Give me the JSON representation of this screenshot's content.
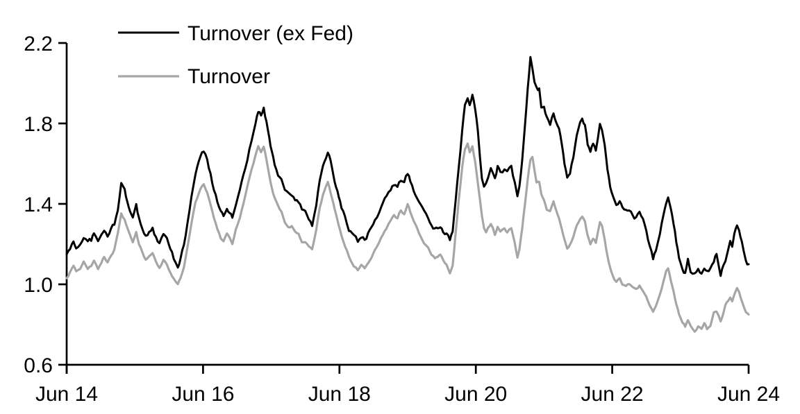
{
  "figure": {
    "background": "#ffffff",
    "axis_color": "#000000"
  },
  "legend": {
    "items": [
      {
        "label": "Turnover (ex Fed)",
        "color": "#000000"
      },
      {
        "label": "Turnover",
        "color": "#a6a6a6"
      }
    ]
  },
  "chart_data": {
    "type": "line",
    "title": "",
    "xlabel": "",
    "ylabel": "",
    "grid": false,
    "legend_position": "top-left-inside",
    "x_axis": {
      "tick_labels": [
        "Jun 14",
        "Jun 16",
        "Jun 18",
        "Jun 20",
        "Jun 22",
        "Jun 24"
      ],
      "tick_years": [
        0,
        2,
        4,
        6,
        8,
        10
      ],
      "unit": "years since Jun 2014",
      "range": [
        0,
        10.0
      ]
    },
    "y_axis": {
      "tick_labels": [
        "0.6",
        "1.0",
        "1.4",
        "1.8",
        "2.2"
      ],
      "tick_values": [
        0.6,
        1.0,
        1.4,
        1.8,
        2.2
      ],
      "range": [
        0.6,
        2.2
      ]
    },
    "t": [
      0.0,
      0.05,
      0.1,
      0.14,
      0.2,
      0.25,
      0.31,
      0.36,
      0.4,
      0.46,
      0.51,
      0.55,
      0.6,
      0.65,
      0.7,
      0.75,
      0.8,
      0.85,
      0.89,
      0.93,
      0.97,
      1.02,
      1.06,
      1.11,
      1.16,
      1.21,
      1.26,
      1.31,
      1.36,
      1.42,
      1.47,
      1.52,
      1.57,
      1.63,
      1.67,
      1.72,
      1.77,
      1.83,
      1.89,
      1.96,
      2.01,
      2.06,
      2.11,
      2.16,
      2.21,
      2.26,
      2.3,
      2.35,
      2.39,
      2.43,
      2.48,
      2.54,
      2.59,
      2.65,
      2.71,
      2.77,
      2.81,
      2.85,
      2.89,
      2.93,
      2.97,
      3.01,
      3.05,
      3.1,
      3.15,
      3.2,
      3.25,
      3.3,
      3.35,
      3.4,
      3.45,
      3.5,
      3.55,
      3.6,
      3.66,
      3.71,
      3.76,
      3.8,
      3.83,
      3.87,
      3.91,
      3.95,
      3.99,
      4.03,
      4.08,
      4.14,
      4.21,
      4.27,
      4.32,
      4.37,
      4.42,
      4.47,
      4.52,
      4.58,
      4.64,
      4.69,
      4.75,
      4.8,
      4.85,
      4.9,
      4.95,
      5.0,
      5.04,
      5.09,
      5.14,
      5.19,
      5.24,
      5.3,
      5.35,
      5.4,
      5.44,
      5.48,
      5.52,
      5.57,
      5.62,
      5.66,
      5.7,
      5.75,
      5.8,
      5.84,
      5.88,
      5.91,
      5.95,
      5.99,
      6.03,
      6.06,
      6.09,
      6.12,
      6.15,
      6.18,
      6.22,
      6.25,
      6.28,
      6.32,
      6.36,
      6.42,
      6.46,
      6.52,
      6.57,
      6.61,
      6.64,
      6.68,
      6.72,
      6.76,
      6.8,
      6.83,
      6.86,
      6.89,
      6.93,
      6.96,
      7.0,
      7.04,
      7.09,
      7.14,
      7.18,
      7.22,
      7.26,
      7.3,
      7.34,
      7.38,
      7.43,
      7.48,
      7.53,
      7.56,
      7.6,
      7.64,
      7.68,
      7.72,
      7.76,
      7.79,
      7.82,
      7.85,
      7.89,
      7.93,
      7.97,
      8.01,
      8.06,
      8.11,
      8.15,
      8.2,
      8.25,
      8.3,
      8.35,
      8.4,
      8.45,
      8.5,
      8.55,
      8.6,
      8.64,
      8.7,
      8.75,
      8.79,
      8.82,
      8.86,
      8.9,
      8.94,
      8.98,
      9.03,
      9.07,
      9.11,
      9.15,
      9.21,
      9.26,
      9.31,
      9.35,
      9.39,
      9.44,
      9.49,
      9.53,
      9.59,
      9.63,
      9.66,
      9.7,
      9.73,
      9.76,
      9.79,
      9.83,
      9.86,
      9.9,
      9.93,
      9.96,
      10.0
    ],
    "series": [
      {
        "name": "Turnover (ex Fed)",
        "color": "#000000",
        "stroke_width": 3,
        "jitter": 0.01,
        "values": [
          1.15,
          1.18,
          1.21,
          1.18,
          1.2,
          1.24,
          1.21,
          1.22,
          1.25,
          1.21,
          1.24,
          1.27,
          1.24,
          1.27,
          1.3,
          1.38,
          1.5,
          1.46,
          1.41,
          1.37,
          1.34,
          1.39,
          1.33,
          1.28,
          1.24,
          1.26,
          1.28,
          1.23,
          1.2,
          1.24,
          1.22,
          1.18,
          1.13,
          1.08,
          1.12,
          1.2,
          1.3,
          1.43,
          1.55,
          1.63,
          1.66,
          1.62,
          1.55,
          1.47,
          1.41,
          1.37,
          1.35,
          1.38,
          1.36,
          1.33,
          1.4,
          1.46,
          1.53,
          1.62,
          1.71,
          1.8,
          1.86,
          1.84,
          1.88,
          1.81,
          1.74,
          1.66,
          1.6,
          1.55,
          1.52,
          1.47,
          1.46,
          1.45,
          1.42,
          1.41,
          1.37,
          1.37,
          1.33,
          1.29,
          1.4,
          1.52,
          1.6,
          1.64,
          1.67,
          1.61,
          1.55,
          1.49,
          1.43,
          1.38,
          1.33,
          1.27,
          1.23,
          1.21,
          1.24,
          1.22,
          1.25,
          1.28,
          1.31,
          1.36,
          1.4,
          1.43,
          1.47,
          1.5,
          1.48,
          1.52,
          1.5,
          1.55,
          1.51,
          1.47,
          1.43,
          1.39,
          1.36,
          1.33,
          1.3,
          1.28,
          1.27,
          1.28,
          1.26,
          1.25,
          1.22,
          1.26,
          1.4,
          1.58,
          1.77,
          1.9,
          1.94,
          1.9,
          1.95,
          1.88,
          1.76,
          1.63,
          1.53,
          1.48,
          1.5,
          1.53,
          1.57,
          1.55,
          1.53,
          1.59,
          1.55,
          1.57,
          1.55,
          1.58,
          1.5,
          1.43,
          1.48,
          1.62,
          1.78,
          1.97,
          2.13,
          2.08,
          2.0,
          1.98,
          1.97,
          1.87,
          1.89,
          1.83,
          1.8,
          1.86,
          1.8,
          1.77,
          1.7,
          1.6,
          1.53,
          1.56,
          1.63,
          1.73,
          1.79,
          1.82,
          1.79,
          1.7,
          1.66,
          1.7,
          1.67,
          1.74,
          1.8,
          1.77,
          1.68,
          1.57,
          1.48,
          1.43,
          1.39,
          1.41,
          1.38,
          1.36,
          1.36,
          1.34,
          1.33,
          1.35,
          1.32,
          1.26,
          1.19,
          1.13,
          1.17,
          1.26,
          1.34,
          1.41,
          1.44,
          1.37,
          1.29,
          1.21,
          1.13,
          1.07,
          1.05,
          1.13,
          1.07,
          1.06,
          1.08,
          1.06,
          1.09,
          1.06,
          1.08,
          1.12,
          1.15,
          1.05,
          1.09,
          1.12,
          1.18,
          1.23,
          1.2,
          1.25,
          1.29,
          1.26,
          1.22,
          1.16,
          1.12,
          1.1
        ]
      },
      {
        "name": "Turnover",
        "color": "#a6a6a6",
        "stroke_width": 3.2,
        "jitter": 0.0045,
        "values": [
          1.03,
          1.06,
          1.09,
          1.06,
          1.08,
          1.11,
          1.08,
          1.09,
          1.12,
          1.08,
          1.11,
          1.14,
          1.11,
          1.14,
          1.17,
          1.25,
          1.35,
          1.32,
          1.28,
          1.24,
          1.21,
          1.26,
          1.2,
          1.16,
          1.12,
          1.14,
          1.16,
          1.11,
          1.08,
          1.12,
          1.1,
          1.06,
          1.03,
          1.0,
          1.03,
          1.09,
          1.18,
          1.3,
          1.41,
          1.47,
          1.5,
          1.46,
          1.4,
          1.33,
          1.27,
          1.23,
          1.21,
          1.25,
          1.23,
          1.2,
          1.27,
          1.33,
          1.4,
          1.49,
          1.57,
          1.64,
          1.68,
          1.66,
          1.68,
          1.62,
          1.55,
          1.48,
          1.43,
          1.39,
          1.36,
          1.31,
          1.28,
          1.29,
          1.26,
          1.25,
          1.21,
          1.21,
          1.19,
          1.17,
          1.27,
          1.38,
          1.45,
          1.49,
          1.51,
          1.46,
          1.4,
          1.35,
          1.29,
          1.24,
          1.19,
          1.14,
          1.09,
          1.07,
          1.1,
          1.08,
          1.11,
          1.14,
          1.17,
          1.21,
          1.25,
          1.28,
          1.32,
          1.35,
          1.33,
          1.37,
          1.35,
          1.4,
          1.36,
          1.32,
          1.28,
          1.24,
          1.21,
          1.18,
          1.15,
          1.13,
          1.14,
          1.15,
          1.12,
          1.1,
          1.06,
          1.1,
          1.24,
          1.42,
          1.58,
          1.67,
          1.7,
          1.66,
          1.69,
          1.61,
          1.5,
          1.42,
          1.34,
          1.28,
          1.26,
          1.28,
          1.3,
          1.28,
          1.25,
          1.29,
          1.26,
          1.28,
          1.26,
          1.28,
          1.21,
          1.14,
          1.18,
          1.28,
          1.4,
          1.52,
          1.62,
          1.63,
          1.56,
          1.5,
          1.51,
          1.45,
          1.42,
          1.37,
          1.37,
          1.41,
          1.37,
          1.33,
          1.28,
          1.22,
          1.18,
          1.2,
          1.24,
          1.29,
          1.32,
          1.33,
          1.31,
          1.24,
          1.2,
          1.23,
          1.21,
          1.26,
          1.31,
          1.29,
          1.22,
          1.14,
          1.08,
          1.04,
          1.01,
          1.03,
          1.0,
          0.99,
          1.0,
          0.98,
          0.97,
          0.99,
          0.97,
          0.94,
          0.9,
          0.87,
          0.89,
          0.95,
          1.01,
          1.06,
          1.08,
          1.02,
          0.96,
          0.9,
          0.85,
          0.81,
          0.79,
          0.82,
          0.79,
          0.77,
          0.79,
          0.78,
          0.81,
          0.78,
          0.8,
          0.86,
          0.87,
          0.82,
          0.86,
          0.9,
          0.92,
          0.94,
          0.92,
          0.95,
          0.98,
          0.96,
          0.92,
          0.89,
          0.86,
          0.85
        ]
      }
    ]
  }
}
